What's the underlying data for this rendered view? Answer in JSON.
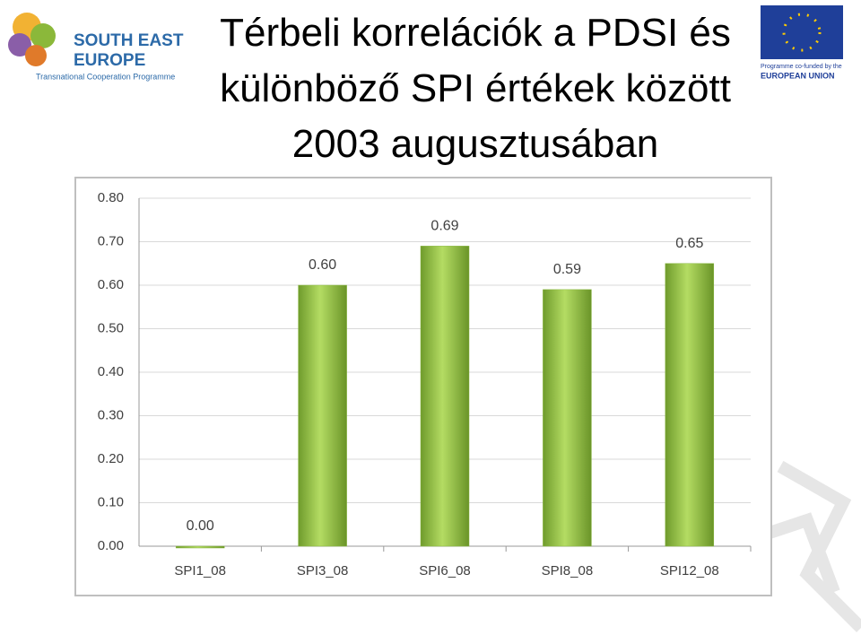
{
  "logo_left": {
    "line1": "SOUTH EAST",
    "line2": "EUROPE",
    "line3": "Transnational Cooperation Programme"
  },
  "logo_right": {
    "line1": "Programme co-funded by the",
    "line2": "EUROPEAN UNION"
  },
  "chart_data": {
    "type": "bar",
    "title": "Térbeli korrelációk a PDSI és különböző SPI értékek között 2003 augusztusában",
    "categories": [
      "SPI1_08",
      "SPI3_08",
      "SPI6_08",
      "SPI8_08",
      "SPI12_08"
    ],
    "values": [
      0,
      0.6,
      0.69,
      0.59,
      0.65
    ],
    "value_labels": [
      "0.00",
      "0.60",
      "0.69",
      "0.59",
      "0.65"
    ],
    "color": "#8ab843",
    "ylim": [
      0,
      0.8
    ],
    "yticks": [
      {
        "value": 0,
        "label": "0.00"
      },
      {
        "value": 0.1,
        "label": "0.10"
      },
      {
        "value": 0.2,
        "label": "0.20"
      },
      {
        "value": 0.3,
        "label": "0.30"
      },
      {
        "value": 0.4,
        "label": "0.40"
      },
      {
        "value": 0.5,
        "label": "0.50"
      },
      {
        "value": 0.6,
        "label": "0.60"
      },
      {
        "value": 0.7,
        "label": "0.70"
      },
      {
        "value": 0.8,
        "label": "0.80"
      }
    ],
    "grid": true
  }
}
